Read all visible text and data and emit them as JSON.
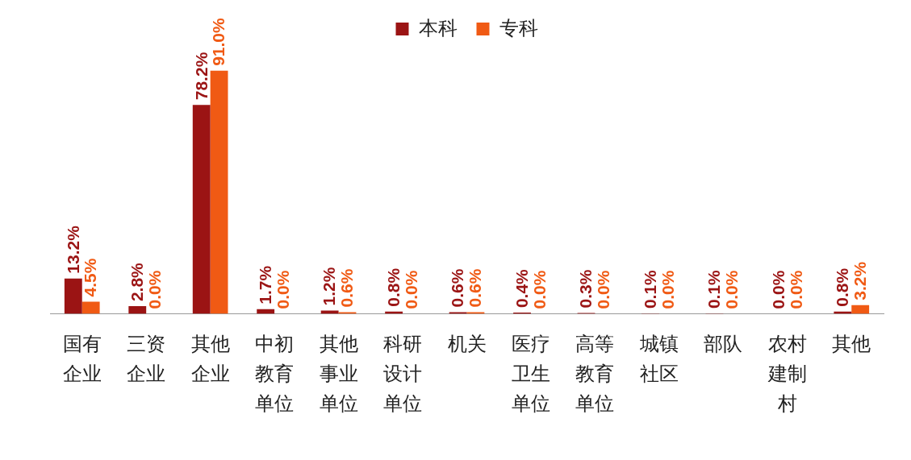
{
  "chart_data": {
    "type": "bar",
    "categories": [
      "国有企业",
      "三资企业",
      "其他企业",
      "中初教育单位",
      "其他事业单位",
      "科研设计单位",
      "机关",
      "医疗卫生单位",
      "高等教育单位",
      "城镇社区",
      "部队",
      "农村建制村",
      "其他"
    ],
    "series": [
      {
        "name": "本科",
        "color": "#9b1414",
        "values": [
          13.2,
          2.8,
          78.2,
          1.7,
          1.2,
          0.8,
          0.6,
          0.4,
          0.3,
          0.1,
          0.1,
          0.0,
          0.8
        ],
        "value_labels": [
          "13.2%",
          "2.8%",
          "78.2%",
          "1.7%",
          "1.2%",
          "0.8%",
          "0.6%",
          "0.4%",
          "0.3%",
          "0.1%",
          "0.1%",
          "0.0%",
          "0.8%"
        ]
      },
      {
        "name": "专科",
        "color": "#f05a14",
        "values": [
          4.5,
          0.0,
          91.0,
          0.0,
          0.6,
          0.0,
          0.6,
          0.0,
          0.0,
          0.0,
          0.0,
          0.0,
          3.2
        ],
        "value_labels": [
          "4.5%",
          "0.0%",
          "91.0%",
          "0.0%",
          "0.6%",
          "0.0%",
          "0.6%",
          "0.0%",
          "0.0%",
          "0.0%",
          "0.0%",
          "0.0%",
          "3.2%"
        ]
      }
    ],
    "grid": false,
    "legend": "top",
    "tick_labels": "x"
  }
}
